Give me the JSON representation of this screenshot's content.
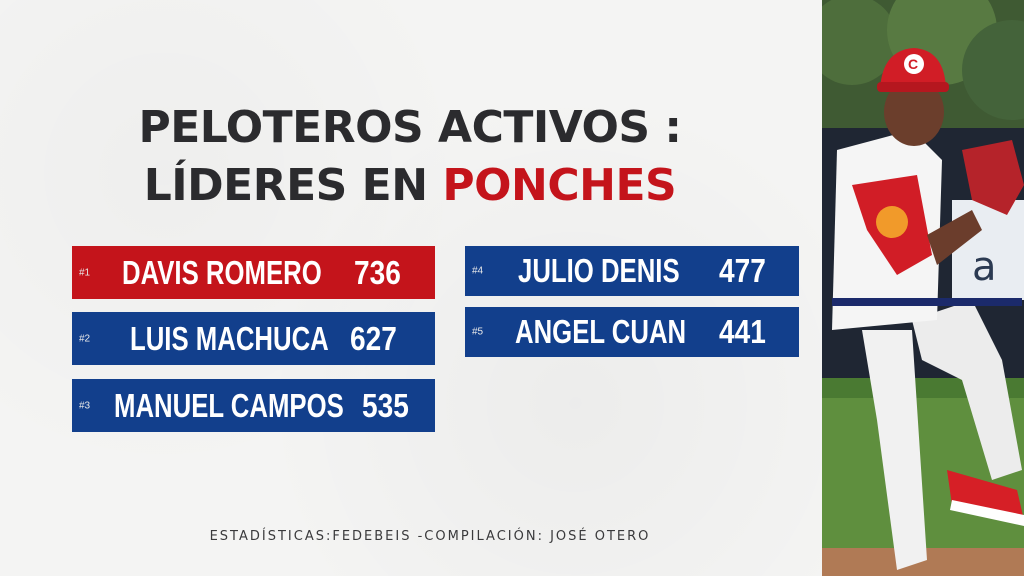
{
  "title": {
    "line1": "PELOTEROS ACTIVOS :",
    "line2_prefix": "LÍDERES EN ",
    "line2_accent": "PONCHES"
  },
  "leaders": [
    {
      "rank": "#1",
      "name": "DAVIS ROMERO",
      "value": "736",
      "color": "#c4141b"
    },
    {
      "rank": "#2",
      "name": "LUIS MACHUCA",
      "value": "627",
      "color": "#123f8c"
    },
    {
      "rank": "#3",
      "name": "MANUEL CAMPOS",
      "value": "535",
      "color": "#123f8c"
    },
    {
      "rank": "#4",
      "name": "JULIO DENIS",
      "value": "477",
      "color": "#123f8c"
    },
    {
      "rank": "#5",
      "name": "ANGEL CUAN",
      "value": "441",
      "color": "#123f8c"
    }
  ],
  "footer": "ESTADÍSTICAS:FEDEBEIS -COMPILACIÓN: JOSÉ OTERO",
  "photo": {
    "cap_letter": "C"
  }
}
